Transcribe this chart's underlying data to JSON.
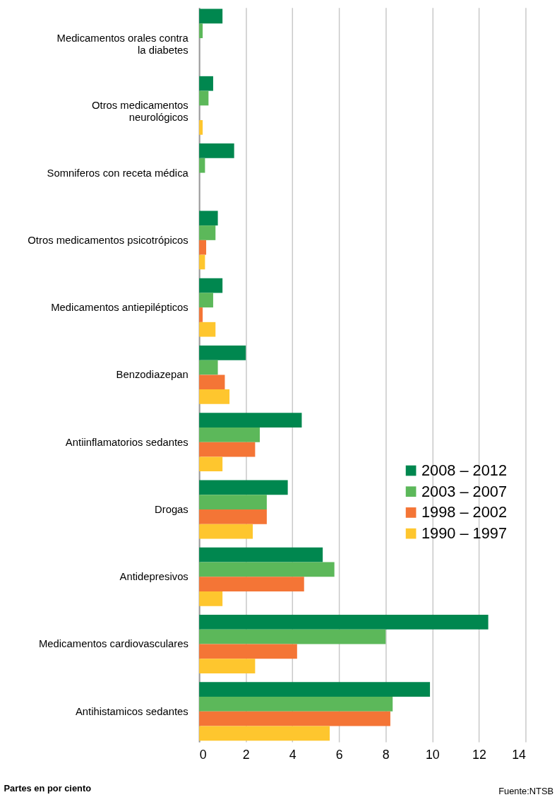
{
  "chart_data": {
    "type": "bar",
    "orientation": "horizontal",
    "categories": [
      "Medicamentos orales contra\nla diabetes",
      "Otros medicamentos\nneurológicos",
      "Somniferos con receta médica",
      "Otros medicamentos psicotrópicos",
      "Medicamentos antiepilépticos",
      "Benzodiazepan",
      "Antiinflamatorios sedantes",
      "Drogas",
      "Antidepresivos",
      "Medicamentos cardiovasculares",
      "Antihistamicos sedantes"
    ],
    "series": [
      {
        "name": "2008 – 2012",
        "color": "#00874f",
        "values": [
          1.0,
          0.6,
          1.5,
          0.8,
          1.0,
          2.0,
          4.4,
          3.8,
          5.3,
          12.4,
          9.9
        ]
      },
      {
        "name": "2003 – 2007",
        "color": "#5cb85a",
        "values": [
          0.15,
          0.4,
          0.25,
          0.7,
          0.6,
          0.8,
          2.6,
          2.9,
          5.8,
          8.0,
          8.3
        ]
      },
      {
        "name": "1998 – 2002",
        "color": "#f47536",
        "values": [
          null,
          null,
          null,
          0.3,
          0.15,
          1.1,
          2.4,
          2.9,
          4.5,
          4.2,
          8.2
        ]
      },
      {
        "name": "1990 – 1997",
        "color": "#fec62e",
        "values": [
          null,
          0.15,
          null,
          0.25,
          0.7,
          1.3,
          1.0,
          2.3,
          1.0,
          2.4,
          5.6
        ]
      }
    ],
    "xlim": [
      0,
      14
    ],
    "xticks": [
      0,
      2,
      4,
      6,
      8,
      10,
      12,
      14
    ],
    "xlabel": "Partes en por ciento",
    "annotations": [
      "Fuente:NTSB"
    ],
    "grid": "x",
    "legend": "right"
  }
}
